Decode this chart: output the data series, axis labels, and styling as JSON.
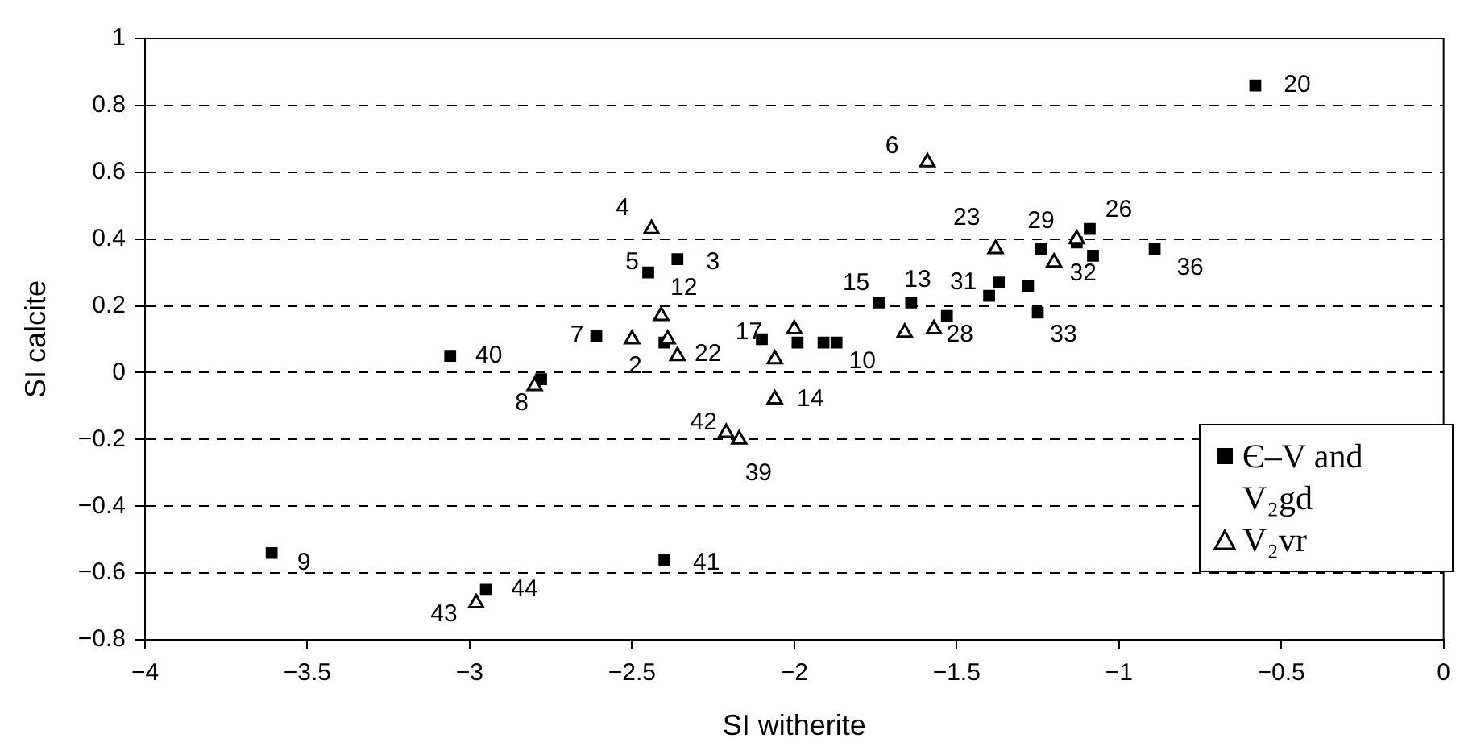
{
  "chart_data": {
    "type": "scatter",
    "xlabel": "SI witherite",
    "ylabel": "SI calcite",
    "xlim": [
      -4,
      0
    ],
    "xticks": [
      -4,
      -3.5,
      -3,
      -2.5,
      -2,
      -1.5,
      -1,
      -0.5,
      0
    ],
    "ylim": [
      -0.8,
      1
    ],
    "yticks": [
      -0.8,
      -0.6,
      -0.4,
      -0.2,
      0,
      0.2,
      0.4,
      0.6,
      0.8,
      1
    ],
    "grid": "y",
    "legend": "bottom right",
    "series": [
      {
        "name": "Є–V and V₂gd",
        "color": "#000000",
        "marker": "square",
        "x": [
          -2.45,
          -2.36,
          -2.61,
          -2.4,
          -3.06,
          -2.78,
          -2.1,
          -1.99,
          -1.91,
          -1.87,
          -3.61,
          -2.4,
          -2.95,
          -0.58,
          -1.24,
          -1.13,
          -1.09,
          -1.08,
          -0.89,
          -1.74,
          -1.64,
          -1.37,
          -1.4,
          -1.28,
          -1.25,
          -1.53
        ],
        "values": [
          0.3,
          0.34,
          0.11,
          0.09,
          0.05,
          -0.02,
          0.1,
          0.09,
          0.09,
          0.09,
          -0.54,
          -0.56,
          -0.65,
          0.86,
          0.37,
          0.39,
          0.43,
          0.35,
          0.37,
          0.21,
          0.21,
          0.27,
          0.23,
          0.26,
          0.18,
          0.17
        ]
      },
      {
        "name": "V₂vr",
        "color": "#000000",
        "marker": "triangle",
        "x": [
          -2.44,
          -2.41,
          -2.5,
          -2.39,
          -2.36,
          -2.8,
          -2.0,
          -2.06,
          -2.06,
          -2.21,
          -2.17,
          -2.98,
          -1.59,
          -1.38,
          -1.13,
          -1.2,
          -1.66,
          -1.57
        ],
        "values": [
          0.43,
          0.17,
          0.1,
          0.1,
          0.05,
          -0.04,
          0.13,
          0.04,
          -0.08,
          -0.18,
          -0.2,
          -0.69,
          0.63,
          0.37,
          0.4,
          0.33,
          0.12,
          0.13
        ]
      }
    ],
    "annotations": [
      {
        "text": "4",
        "x": -2.44,
        "y": 0.43
      },
      {
        "text": "5",
        "x": -2.45,
        "y": 0.3
      },
      {
        "text": "3",
        "x": -2.36,
        "y": 0.34
      },
      {
        "text": "12",
        "x": -2.41,
        "y": 0.17
      },
      {
        "text": "7",
        "x": -2.61,
        "y": 0.11
      },
      {
        "text": "2",
        "x": -2.5,
        "y": 0.1
      },
      {
        "text": "22",
        "x": -2.36,
        "y": 0.05
      },
      {
        "text": "40",
        "x": -3.06,
        "y": 0.05
      },
      {
        "text": "8",
        "x": -2.8,
        "y": -0.04
      },
      {
        "text": "17",
        "x": -2.1,
        "y": 0.1
      },
      {
        "text": "14",
        "x": -2.06,
        "y": -0.08
      },
      {
        "text": "42",
        "x": -2.21,
        "y": -0.18
      },
      {
        "text": "39",
        "x": -2.17,
        "y": -0.2
      },
      {
        "text": "9",
        "x": -3.61,
        "y": -0.54
      },
      {
        "text": "41",
        "x": -2.4,
        "y": -0.56
      },
      {
        "text": "44",
        "x": -2.95,
        "y": -0.65
      },
      {
        "text": "43",
        "x": -2.98,
        "y": -0.69
      },
      {
        "text": "20",
        "x": -0.58,
        "y": 0.86
      },
      {
        "text": "6",
        "x": -1.59,
        "y": 0.63
      },
      {
        "text": "23",
        "x": -1.38,
        "y": 0.37
      },
      {
        "text": "29",
        "x": -1.24,
        "y": 0.37
      },
      {
        "text": "26",
        "x": -1.09,
        "y": 0.43
      },
      {
        "text": "32",
        "x": -1.2,
        "y": 0.33
      },
      {
        "text": "36",
        "x": -0.89,
        "y": 0.37
      },
      {
        "text": "15",
        "x": -1.74,
        "y": 0.21
      },
      {
        "text": "13",
        "x": -1.64,
        "y": 0.21
      },
      {
        "text": "31",
        "x": -1.4,
        "y": 0.23
      },
      {
        "text": "33",
        "x": -1.25,
        "y": 0.18
      },
      {
        "text": "28",
        "x": -1.53,
        "y": 0.17
      },
      {
        "text": "10",
        "x": -1.87,
        "y": 0.09
      }
    ]
  }
}
